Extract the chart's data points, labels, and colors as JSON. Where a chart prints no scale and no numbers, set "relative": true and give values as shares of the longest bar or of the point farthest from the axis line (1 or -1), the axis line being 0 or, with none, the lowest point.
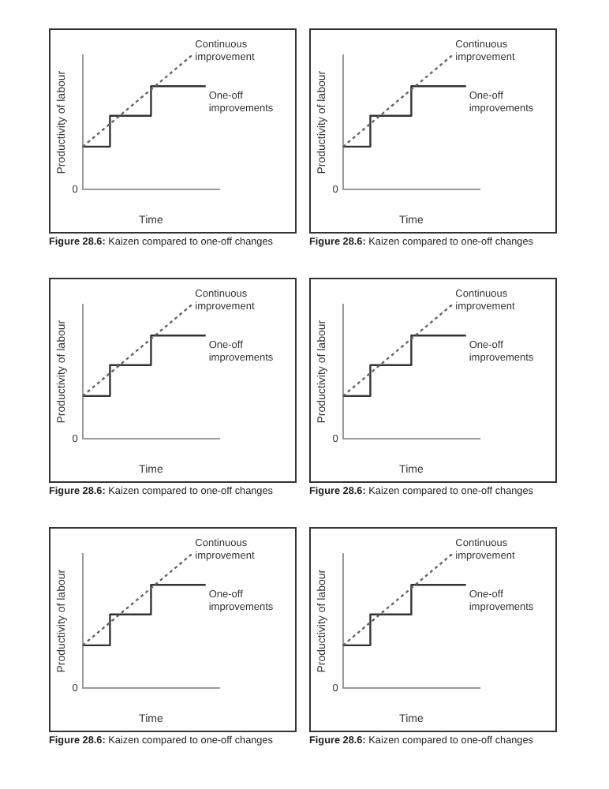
{
  "chart_data": [
    {
      "type": "line",
      "title": "Figure 28.6: Kaizen compared to one-off changes",
      "xlabel": "Time",
      "ylabel": "Productivity of labour",
      "relative": true,
      "categories": [
        null,
        null,
        null,
        null,
        null,
        null,
        null,
        null,
        null,
        null,
        null
      ],
      "series": [
        {
          "name": "Continuous improvement",
          "type": "line",
          "line_style": "dotted",
          "color": "#666666",
          "values": [
            0.32,
            null,
            null,
            null,
            null,
            null,
            null,
            null,
            1,
            null,
            null
          ]
        },
        {
          "name": "One-off improvements",
          "type": "step",
          "line_style": "solid",
          "color": "#333333",
          "values": [
            0.32,
            0.32,
            0.32,
            0.55,
            0.55,
            0.55,
            0.77,
            0.77,
            0.77,
            0.77,
            null
          ]
        }
      ],
      "annotations": [
        "0"
      ],
      "grid": false,
      "legend": false,
      "marker": "none"
    },
    {
      "type": "line",
      "title": "Figure 28.6: Kaizen compared to one-off changes",
      "xlabel": "Time",
      "ylabel": "Productivity of labour",
      "relative": true,
      "categories": [
        null,
        null,
        null,
        null,
        null,
        null,
        null,
        null,
        null,
        null,
        null
      ],
      "series": [
        {
          "name": "Continuous improvement",
          "type": "line",
          "line_style": "dotted",
          "color": "#666666",
          "values": [
            0.32,
            null,
            null,
            null,
            null,
            null,
            null,
            null,
            1,
            null,
            null
          ]
        },
        {
          "name": "One-off improvements",
          "type": "step",
          "line_style": "solid",
          "color": "#333333",
          "values": [
            0.32,
            0.32,
            0.32,
            0.55,
            0.55,
            0.55,
            0.77,
            0.77,
            0.77,
            0.77,
            null
          ]
        }
      ],
      "annotations": [
        "0"
      ],
      "grid": false,
      "legend": false,
      "marker": "none"
    },
    {
      "type": "line",
      "title": "Figure 28.6: Kaizen compared to one-off changes",
      "xlabel": "Time",
      "ylabel": "Productivity of labour",
      "relative": true,
      "categories": [
        null,
        null,
        null,
        null,
        null,
        null,
        null,
        null,
        null,
        null,
        null
      ],
      "series": [
        {
          "name": "Continuous improvement",
          "type": "line",
          "line_style": "dotted",
          "color": "#666666",
          "values": [
            0.32,
            null,
            null,
            null,
            null,
            null,
            null,
            null,
            1,
            null,
            null
          ]
        },
        {
          "name": "One-off improvements",
          "type": "step",
          "line_style": "solid",
          "color": "#333333",
          "values": [
            0.32,
            0.32,
            0.32,
            0.55,
            0.55,
            0.55,
            0.77,
            0.77,
            0.77,
            0.77,
            null
          ]
        }
      ],
      "annotations": [
        "0"
      ],
      "grid": false,
      "legend": false,
      "marker": "none"
    },
    {
      "type": "line",
      "title": "Figure 28.6: Kaizen compared to one-off changes",
      "xlabel": "Time",
      "ylabel": "Productivity of labour",
      "relative": true,
      "categories": [
        null,
        null,
        null,
        null,
        null,
        null,
        null,
        null,
        null,
        null,
        null
      ],
      "series": [
        {
          "name": "Continuous improvement",
          "type": "line",
          "line_style": "dotted",
          "color": "#666666",
          "values": [
            0.32,
            null,
            null,
            null,
            null,
            null,
            null,
            null,
            1,
            null,
            null
          ]
        },
        {
          "name": "One-off improvements",
          "type": "step",
          "line_style": "solid",
          "color": "#333333",
          "values": [
            0.32,
            0.32,
            0.32,
            0.55,
            0.55,
            0.55,
            0.77,
            0.77,
            0.77,
            0.77,
            null
          ]
        }
      ],
      "annotations": [
        "0"
      ],
      "grid": false,
      "legend": false,
      "marker": "none"
    },
    {
      "type": "line",
      "title": "Figure 28.6: Kaizen compared to one-off changes",
      "xlabel": "Time",
      "ylabel": "Productivity of labour",
      "relative": true,
      "categories": [
        null,
        null,
        null,
        null,
        null,
        null,
        null,
        null,
        null,
        null,
        null
      ],
      "series": [
        {
          "name": "Continuous improvement",
          "type": "line",
          "line_style": "dotted",
          "color": "#666666",
          "values": [
            0.32,
            null,
            null,
            null,
            null,
            null,
            null,
            null,
            1,
            null,
            null
          ]
        },
        {
          "name": "One-off improvements",
          "type": "step",
          "line_style": "solid",
          "color": "#333333",
          "values": [
            0.32,
            0.32,
            0.32,
            0.55,
            0.55,
            0.55,
            0.77,
            0.77,
            0.77,
            0.77,
            null
          ]
        }
      ],
      "annotations": [
        "0"
      ],
      "grid": false,
      "legend": false,
      "marker": "none"
    },
    {
      "type": "line",
      "title": "Figure 28.6: Kaizen compared to one-off changes",
      "xlabel": "Time",
      "ylabel": "Productivity of labour",
      "relative": true,
      "categories": [
        null,
        null,
        null,
        null,
        null,
        null,
        null,
        null,
        null,
        null,
        null
      ],
      "series": [
        {
          "name": "Continuous improvement",
          "type": "line",
          "line_style": "dotted",
          "color": "#666666",
          "values": [
            0.32,
            null,
            null,
            null,
            null,
            null,
            null,
            null,
            1,
            null,
            null
          ]
        },
        {
          "name": "One-off improvements",
          "type": "step",
          "line_style": "solid",
          "color": "#333333",
          "values": [
            0.32,
            0.32,
            0.32,
            0.55,
            0.55,
            0.55,
            0.77,
            0.77,
            0.77,
            0.77,
            null
          ]
        }
      ],
      "annotations": [
        "0"
      ],
      "grid": false,
      "legend": false,
      "marker": "none"
    }
  ]
}
